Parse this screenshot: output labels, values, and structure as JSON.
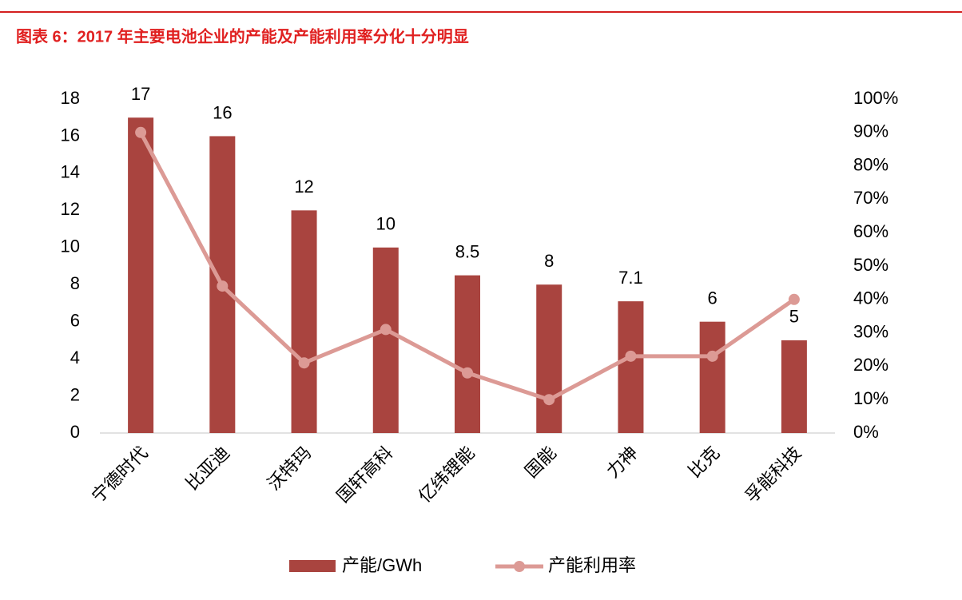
{
  "chart_data": {
    "type": "bar",
    "title": "图表 6：2017 年主要电池企业的产能及产能利用率分化十分明显",
    "categories": [
      "宁德时代",
      "比亚迪",
      "沃特玛",
      "国轩高科",
      "亿纬锂能",
      "国能",
      "力神",
      "比克",
      "孚能科技"
    ],
    "series": [
      {
        "name": "产能/GWh",
        "type": "bar",
        "color": "#a9443f",
        "values": [
          17,
          16,
          12,
          10,
          8.5,
          8,
          7.1,
          6,
          5
        ]
      },
      {
        "name": "产能利用率",
        "type": "line",
        "axis": "y2",
        "color": "#dc9a95",
        "values": [
          90,
          44,
          21,
          31,
          18,
          10,
          23,
          23,
          40
        ]
      }
    ],
    "ylim": [
      0,
      18
    ],
    "yticks": [
      0,
      2,
      4,
      6,
      8,
      10,
      12,
      14,
      16,
      18
    ],
    "y2lim": [
      0,
      100
    ],
    "y2ticks": [
      {
        "value": 0,
        "label": "0%"
      },
      {
        "value": 10,
        "label": "10%"
      },
      {
        "value": 20,
        "label": "20%"
      },
      {
        "value": 30,
        "label": "30%"
      },
      {
        "value": 40,
        "label": "40%"
      },
      {
        "value": 50,
        "label": "50%"
      },
      {
        "value": 60,
        "label": "60%"
      },
      {
        "value": 70,
        "label": "70%"
      },
      {
        "value": 80,
        "label": "80%"
      },
      {
        "value": 90,
        "label": "90%"
      },
      {
        "value": 100,
        "label": "100%"
      }
    ],
    "grid": false
  }
}
